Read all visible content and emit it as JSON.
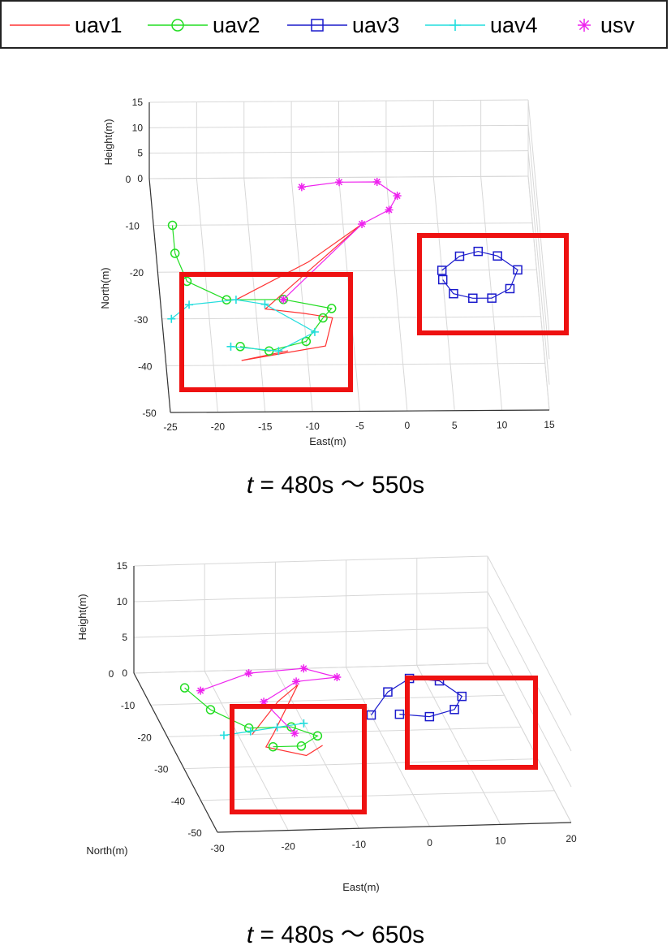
{
  "legend": [
    {
      "name": "uav1",
      "color": "#ff3333",
      "marker": "line"
    },
    {
      "name": "uav2",
      "color": "#22dd22",
      "marker": "circle"
    },
    {
      "name": "uav3",
      "color": "#1a1acc",
      "marker": "square"
    },
    {
      "name": "uav4",
      "color": "#22dddd",
      "marker": "plus"
    },
    {
      "name": "usv",
      "color": "#ee22ee",
      "marker": "asterisk"
    }
  ],
  "chart_data": [
    {
      "type": "line",
      "caption": {
        "var": "t",
        "eq": "=",
        "from": "480s",
        "sep": "～",
        "to": "550s"
      },
      "xlabel": "East(m)",
      "ylabel": "North(m)",
      "zlabel": "Height(m)",
      "xticks": [
        "-25",
        "-20",
        "-15",
        "-10",
        "-5",
        "0",
        "5",
        "10",
        "15"
      ],
      "yticks": [
        "0",
        "-10",
        "-20",
        "-30",
        "-40",
        "-50"
      ],
      "zticks": [
        "0",
        "5",
        "10",
        "15"
      ],
      "xlim": [
        -25,
        15
      ],
      "ylim": [
        -50,
        0
      ],
      "zlim": [
        0,
        15
      ],
      "grid": true,
      "series": [
        {
          "name": "uav1",
          "x": [
            -17,
            -9,
            -3,
            -14,
            -10,
            -7,
            -8,
            -17,
            -12
          ],
          "y": [
            -26,
            -18,
            -10,
            -28,
            -29,
            -30,
            -36,
            -39,
            -37
          ]
        },
        {
          "name": "uav2",
          "x": [
            -23,
            -23,
            -22,
            -18,
            -12,
            -7,
            -8,
            -10,
            -14,
            -17
          ],
          "y": [
            -10,
            -16,
            -22,
            -26,
            -26,
            -28,
            -30,
            -35,
            -37,
            -36
          ]
        },
        {
          "name": "uav3",
          "x": [
            5,
            7,
            9,
            11,
            13,
            12,
            10,
            8,
            6,
            5
          ],
          "y": [
            -20,
            -17,
            -16,
            -17,
            -20,
            -24,
            -26,
            -26,
            -25,
            -22
          ]
        },
        {
          "name": "uav4",
          "x": [
            -24,
            -22,
            -17,
            -14,
            -9,
            -13,
            -18
          ],
          "y": [
            -30,
            -27,
            -26,
            -27,
            -33,
            -37,
            -36
          ]
        },
        {
          "name": "usv",
          "x": [
            -9,
            -5,
            -1,
            1,
            0,
            -3,
            -12
          ],
          "y": [
            -2,
            -1,
            -1,
            -4,
            -7,
            -10,
            -26
          ]
        }
      ],
      "highlight_boxes": 2
    },
    {
      "type": "line",
      "caption": {
        "var": "t",
        "eq": "=",
        "from": "480s",
        "sep": "～",
        "to": "650s"
      },
      "xlabel": "East(m)",
      "ylabel": "North(m)",
      "zlabel": "Height(m)",
      "xticks": [
        "-30",
        "-20",
        "-10",
        "0",
        "10",
        "20"
      ],
      "yticks": [
        "0",
        "-10",
        "-20",
        "-30",
        "-40",
        "-50"
      ],
      "zticks": [
        "0",
        "5",
        "10",
        "15"
      ],
      "xlim": [
        -30,
        20
      ],
      "ylim": [
        -50,
        0
      ],
      "zlim": [
        0,
        15
      ],
      "grid": true,
      "series": [
        {
          "name": "uav1",
          "x": [
            -18,
            -12,
            -8,
            -15,
            -17,
            -12,
            -9
          ],
          "y": [
            -20,
            -10,
            -5,
            -20,
            -24,
            -27,
            -24
          ]
        },
        {
          "name": "uav2",
          "x": [
            -24,
            -22,
            -18,
            -12,
            -9,
            -12,
            -16
          ],
          "y": [
            -5,
            -12,
            -18,
            -18,
            -21,
            -24,
            -24
          ]
        },
        {
          "name": "uav3",
          "x": [
            0,
            4,
            8,
            12,
            14,
            12,
            8,
            4
          ],
          "y": [
            -15,
            -8,
            -4,
            -5,
            -10,
            -14,
            -16,
            -15
          ]
        },
        {
          "name": "uav4",
          "x": [
            -22,
            -18,
            -14,
            -10
          ],
          "y": [
            -20,
            -19,
            -18,
            -17
          ]
        },
        {
          "name": "usv",
          "x": [
            -22,
            -14,
            -6,
            -2,
            -8,
            -14,
            -12
          ],
          "y": [
            -6,
            -1,
            0,
            -3,
            -4,
            -10,
            -20
          ]
        }
      ],
      "highlight_boxes": 2
    }
  ]
}
